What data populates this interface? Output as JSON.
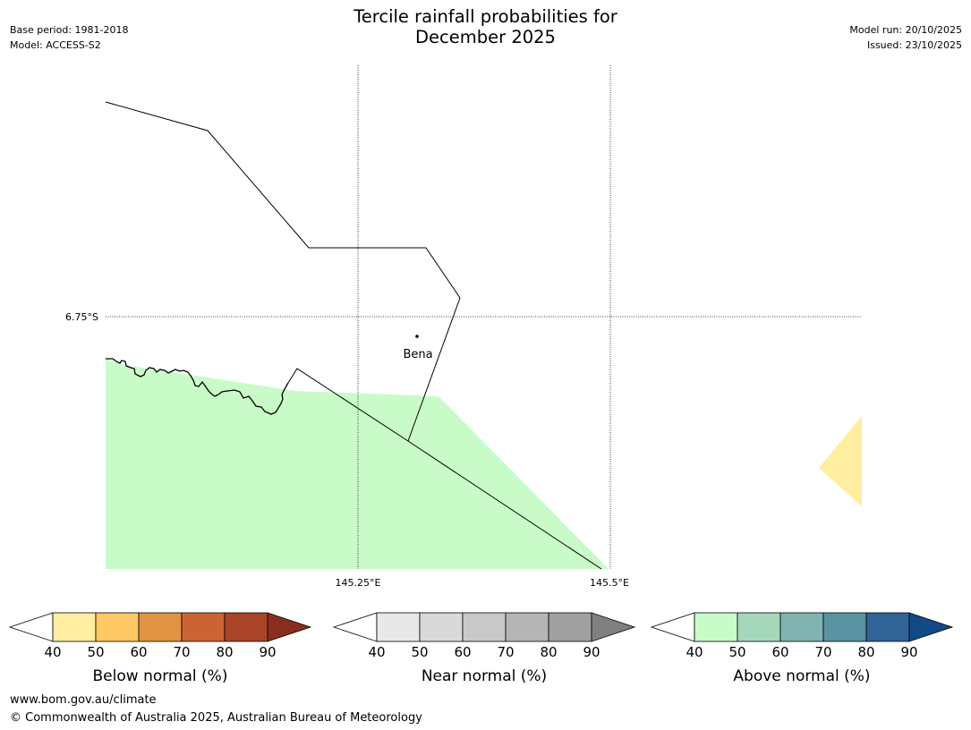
{
  "title": {
    "line1": "Tercile rainfall probabilities for",
    "line2": "December 2025"
  },
  "meta_left": {
    "base_period": "Base period: 1981-2018",
    "model": "Model: ACCESS-S2"
  },
  "meta_right": {
    "model_run": "Model run: 20/10/2025",
    "issued": "Issued: 23/10/2025"
  },
  "map": {
    "lat_label": "6.75°S",
    "lon_labels": [
      "145.25°E",
      "145.5°E"
    ],
    "place_label": "Bena",
    "colors": {
      "above_50": "#c9fbc9",
      "below_50": "#ffeda0",
      "boundary": "#000000"
    }
  },
  "legends": [
    {
      "name": "below",
      "label": "Below normal (%)",
      "ticks": [
        "40",
        "50",
        "60",
        "70",
        "80",
        "90"
      ],
      "colors": [
        "#ffeda0",
        "#fec965",
        "#e09342",
        "#cb6433",
        "#ac4428",
        "#8b2d1e"
      ]
    },
    {
      "name": "near",
      "label": "Near normal (%)",
      "ticks": [
        "40",
        "50",
        "60",
        "70",
        "80",
        "90"
      ],
      "colors": [
        "#e8e8e8",
        "#d9d9d9",
        "#c9c9c9",
        "#b5b5b5",
        "#a0a0a0",
        "#808080"
      ]
    },
    {
      "name": "above",
      "label": "Above normal (%)",
      "ticks": [
        "40",
        "50",
        "60",
        "70",
        "80",
        "90"
      ],
      "colors": [
        "#c9fbc9",
        "#a5d8bb",
        "#80b4b0",
        "#5a93a1",
        "#306496",
        "#124a86"
      ]
    }
  ],
  "footer": {
    "url": "www.bom.gov.au/climate",
    "copyright": "© Commonwealth of Australia 2025, Australian Bureau of Meteorology"
  }
}
